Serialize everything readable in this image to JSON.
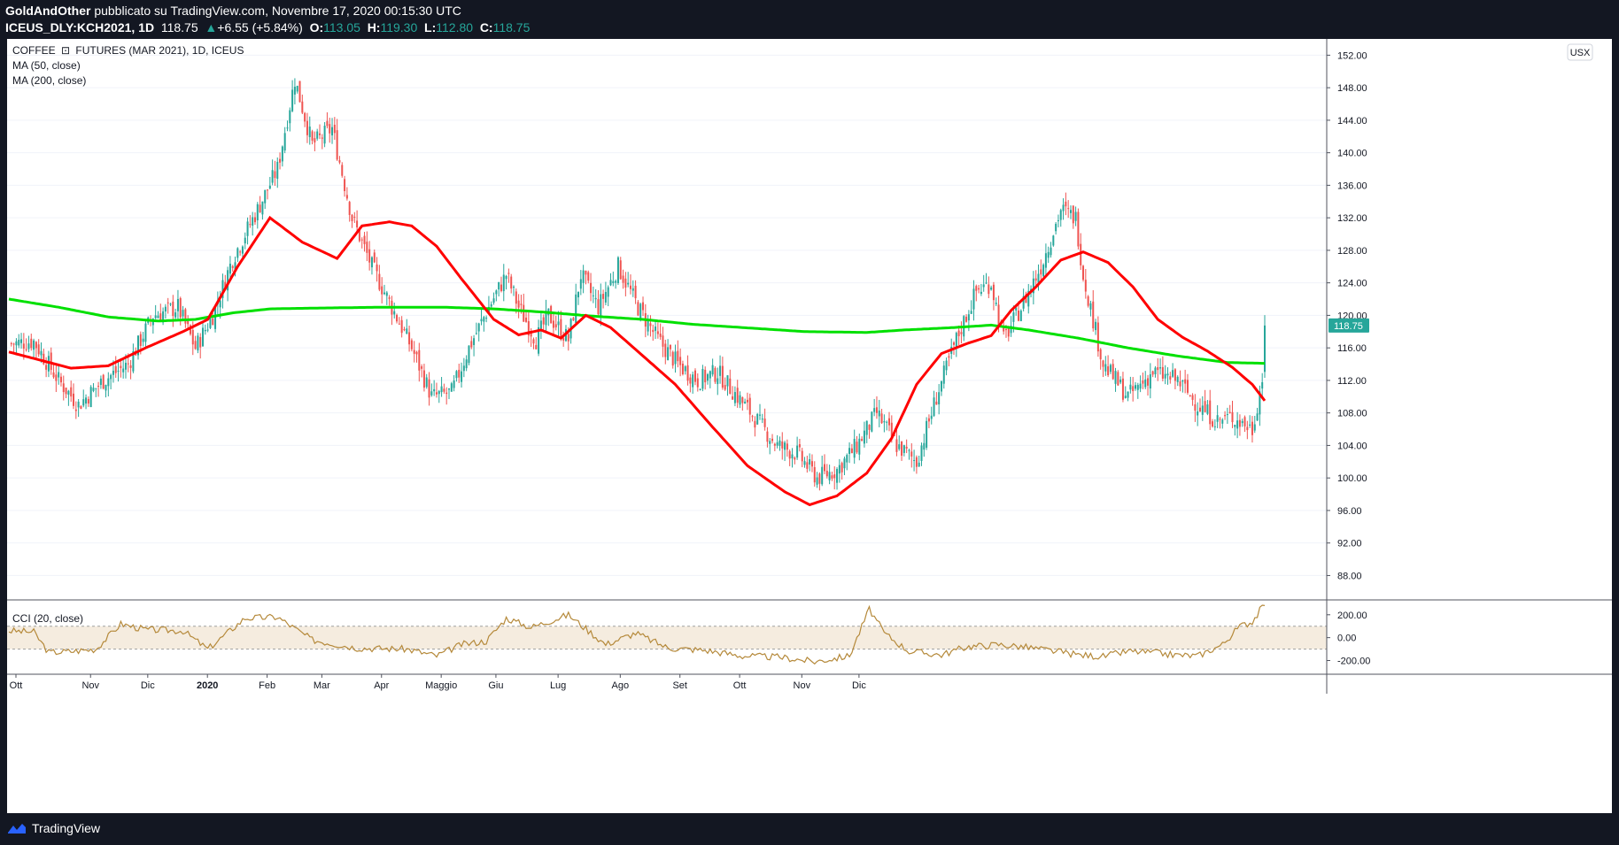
{
  "header": {
    "author": "GoldAndOther",
    "published": "pubblicato su TradingView.com, Novembre 17, 2020 00:15:30 UTC",
    "symbol": "ICEUS_DLY:KCH2021, 1D",
    "last": "118.75",
    "change": "+6.55 (+5.84%)",
    "o_label": "O:",
    "o": "113.05",
    "h_label": "H:",
    "h": "119.30",
    "l_label": "L:",
    "l": "112.80",
    "c_label": "C:",
    "c": "118.75"
  },
  "legend": {
    "title_part1": "COFFEE",
    "title_part2": "FUTURES (MAR 2021), 1D, ICEUS",
    "ma50": "MA (50, close)",
    "ma200": "MA (200, close)",
    "cci": "CCI (20, close)"
  },
  "currency_button": "USX",
  "price_badge": "118.75",
  "footer": {
    "brand": "TradingView"
  },
  "colors": {
    "up": "#26a69a",
    "down": "#ef5350",
    "ma50": "#ff0000",
    "ma200": "#00e000",
    "cci": "#b5893a",
    "band": "#f5ecdf",
    "badge": "#26a69a"
  },
  "chart_data": [
    {
      "type": "candlestick",
      "title": "COFFEE FUTURES (MAR 2021), 1D, ICEUS",
      "ylim": [
        85,
        154
      ],
      "y_ticks": [
        "152.00",
        "148.00",
        "144.00",
        "140.00",
        "136.00",
        "132.00",
        "128.00",
        "124.00",
        "120.00",
        "116.00",
        "112.00",
        "108.00",
        "104.00",
        "100.00",
        "96.00",
        "92.00",
        "88.00"
      ],
      "x_ticks": [
        "Ott",
        "Nov",
        "Dic",
        "2020",
        "Feb",
        "Mar",
        "Apr",
        "Maggio",
        "Giu",
        "Lug",
        "Ago",
        "Set",
        "Ott",
        "Nov",
        "Dic"
      ],
      "close_path": [
        [
          0,
          116.5
        ],
        [
          10,
          116.8
        ],
        [
          20,
          112
        ],
        [
          28,
          109
        ],
        [
          38,
          112
        ],
        [
          48,
          114
        ],
        [
          58,
          120
        ],
        [
          68,
          121
        ],
        [
          75,
          116
        ],
        [
          82,
          120
        ],
        [
          90,
          127
        ],
        [
          100,
          133
        ],
        [
          108,
          138
        ],
        [
          115,
          149
        ],
        [
          122,
          141
        ],
        [
          130,
          143
        ],
        [
          138,
          132
        ],
        [
          146,
          126
        ],
        [
          154,
          121
        ],
        [
          162,
          116
        ],
        [
          170,
          110
        ],
        [
          178,
          110.5
        ],
        [
          185,
          116
        ],
        [
          193,
          121
        ],
        [
          200,
          125
        ],
        [
          205,
          121
        ],
        [
          212,
          117
        ],
        [
          217,
          120
        ],
        [
          225,
          117
        ],
        [
          230,
          125
        ],
        [
          237,
          121
        ],
        [
          245,
          126
        ],
        [
          253,
          121
        ],
        [
          261,
          117
        ],
        [
          269,
          114
        ],
        [
          277,
          112
        ],
        [
          285,
          113
        ],
        [
          293,
          110
        ],
        [
          301,
          107
        ],
        [
          309,
          104
        ],
        [
          317,
          103
        ],
        [
          325,
          100
        ],
        [
          333,
          101
        ],
        [
          341,
          104
        ],
        [
          349,
          108
        ],
        [
          357,
          104
        ],
        [
          365,
          102
        ],
        [
          373,
          110
        ],
        [
          381,
          117
        ],
        [
          389,
          123
        ],
        [
          395,
          124
        ],
        [
          400,
          117
        ],
        [
          407,
          121
        ],
        [
          415,
          126
        ],
        [
          423,
          133
        ],
        [
          429,
          132
        ],
        [
          432,
          125
        ],
        [
          440,
          114
        ],
        [
          450,
          110
        ],
        [
          460,
          113
        ],
        [
          470,
          112
        ],
        [
          478,
          109
        ],
        [
          486,
          107
        ],
        [
          492,
          107.5
        ],
        [
          500,
          106
        ],
        [
          504,
          112.2
        ],
        [
          505,
          118.75
        ]
      ],
      "ma50": [
        [
          0,
          115.5
        ],
        [
          25,
          113.5
        ],
        [
          40,
          113.8
        ],
        [
          55,
          116
        ],
        [
          70,
          118
        ],
        [
          80,
          119.5
        ],
        [
          92,
          126
        ],
        [
          105,
          132
        ],
        [
          118,
          129
        ],
        [
          132,
          127
        ],
        [
          142,
          131
        ],
        [
          153,
          131.5
        ],
        [
          162,
          131
        ],
        [
          172,
          128.5
        ],
        [
          182,
          124.5
        ],
        [
          195,
          119.5
        ],
        [
          205,
          117.6
        ],
        [
          214,
          118.2
        ],
        [
          222,
          117.2
        ],
        [
          232,
          120
        ],
        [
          242,
          118.5
        ],
        [
          255,
          115
        ],
        [
          268,
          111.5
        ],
        [
          282,
          106.6
        ],
        [
          297,
          101.5
        ],
        [
          312,
          98.3
        ],
        [
          322,
          96.7
        ],
        [
          333,
          97.8
        ],
        [
          345,
          100.6
        ],
        [
          355,
          104.9
        ],
        [
          365,
          111.5
        ],
        [
          375,
          115.3
        ],
        [
          385,
          116.5
        ],
        [
          395,
          117.5
        ],
        [
          403,
          120.6
        ],
        [
          413,
          123.5
        ],
        [
          423,
          126.8
        ],
        [
          432,
          127.8
        ],
        [
          442,
          126.5
        ],
        [
          452,
          123.5
        ],
        [
          462,
          119.5
        ],
        [
          472,
          117.3
        ],
        [
          482,
          115.6
        ],
        [
          492,
          113.6
        ],
        [
          500,
          111.5
        ],
        [
          505,
          109.5
        ]
      ],
      "ma200": [
        [
          0,
          122
        ],
        [
          20,
          121
        ],
        [
          40,
          119.8
        ],
        [
          60,
          119.3
        ],
        [
          75,
          119.5
        ],
        [
          90,
          120.3
        ],
        [
          105,
          120.8
        ],
        [
          125,
          120.9
        ],
        [
          150,
          121
        ],
        [
          175,
          121
        ],
        [
          195,
          120.8
        ],
        [
          215,
          120.4
        ],
        [
          235,
          119.9
        ],
        [
          255,
          119.5
        ],
        [
          275,
          118.9
        ],
        [
          295,
          118.5
        ],
        [
          320,
          118
        ],
        [
          345,
          117.9
        ],
        [
          360,
          118.2
        ],
        [
          380,
          118.5
        ],
        [
          395,
          118.8
        ],
        [
          410,
          118.2
        ],
        [
          430,
          117.2
        ],
        [
          450,
          116
        ],
        [
          470,
          115
        ],
        [
          490,
          114.2
        ],
        [
          505,
          114.1
        ]
      ]
    },
    {
      "type": "line",
      "title": "CCI (20, close)",
      "ylim": [
        -320,
        330
      ],
      "y_ticks": [
        "200.00",
        "0.00",
        "-200.00"
      ],
      "band": [
        -100,
        100
      ],
      "values": [
        [
          0,
          60
        ],
        [
          10,
          50
        ],
        [
          16,
          -130
        ],
        [
          25,
          -120
        ],
        [
          35,
          -100
        ],
        [
          45,
          120
        ],
        [
          55,
          70
        ],
        [
          70,
          60
        ],
        [
          80,
          -100
        ],
        [
          95,
          170
        ],
        [
          108,
          180
        ],
        [
          122,
          -20
        ],
        [
          140,
          -90
        ],
        [
          160,
          -100
        ],
        [
          172,
          -160
        ],
        [
          182,
          -60
        ],
        [
          192,
          -30
        ],
        [
          200,
          170
        ],
        [
          210,
          90
        ],
        [
          225,
          200
        ],
        [
          240,
          -60
        ],
        [
          252,
          40
        ],
        [
          265,
          -90
        ],
        [
          280,
          -110
        ],
        [
          295,
          -160
        ],
        [
          310,
          -170
        ],
        [
          324,
          -210
        ],
        [
          338,
          -160
        ],
        [
          346,
          250
        ],
        [
          352,
          40
        ],
        [
          362,
          -120
        ],
        [
          375,
          -150
        ],
        [
          385,
          -80
        ],
        [
          398,
          -60
        ],
        [
          408,
          -80
        ],
        [
          418,
          -110
        ],
        [
          430,
          -150
        ],
        [
          440,
          -165
        ],
        [
          450,
          -120
        ],
        [
          460,
          -130
        ],
        [
          468,
          -150
        ],
        [
          478,
          -160
        ],
        [
          488,
          -60
        ],
        [
          495,
          100
        ],
        [
          500,
          140
        ],
        [
          505,
          300
        ]
      ]
    }
  ]
}
